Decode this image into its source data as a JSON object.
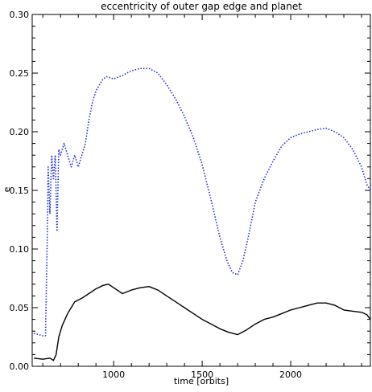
{
  "chart_data": {
    "type": "line",
    "title": "eccentricity of outer gap edge and planet",
    "xlabel": "time [orbits]",
    "ylabel": "e",
    "xlim": [
      540,
      2450
    ],
    "ylim": [
      0.0,
      0.3
    ],
    "xticks": [
      1000,
      1500,
      2000
    ],
    "yticks": [
      0.0,
      0.05,
      0.1,
      0.15,
      0.2,
      0.25,
      0.3
    ],
    "ytick_labels": [
      "0.00",
      "0.05",
      "0.10",
      "0.15",
      "0.20",
      "0.25",
      "0.30"
    ],
    "grid": false,
    "legend": "none",
    "series": [
      {
        "style": "dotted",
        "color": "#1f2fd6",
        "points": [
          [
            550,
            0.028
          ],
          [
            600,
            0.026
          ],
          [
            615,
            0.026
          ],
          [
            625,
            0.11
          ],
          [
            630,
            0.17
          ],
          [
            640,
            0.13
          ],
          [
            650,
            0.18
          ],
          [
            660,
            0.16
          ],
          [
            670,
            0.18
          ],
          [
            680,
            0.115
          ],
          [
            690,
            0.185
          ],
          [
            700,
            0.18
          ],
          [
            720,
            0.19
          ],
          [
            740,
            0.18
          ],
          [
            760,
            0.17
          ],
          [
            780,
            0.18
          ],
          [
            800,
            0.17
          ],
          [
            820,
            0.18
          ],
          [
            840,
            0.19
          ],
          [
            860,
            0.21
          ],
          [
            880,
            0.225
          ],
          [
            900,
            0.235
          ],
          [
            920,
            0.24
          ],
          [
            940,
            0.245
          ],
          [
            960,
            0.247
          ],
          [
            980,
            0.246
          ],
          [
            1000,
            0.245
          ],
          [
            1050,
            0.248
          ],
          [
            1100,
            0.252
          ],
          [
            1150,
            0.254
          ],
          [
            1200,
            0.254
          ],
          [
            1250,
            0.25
          ],
          [
            1300,
            0.24
          ],
          [
            1350,
            0.228
          ],
          [
            1400,
            0.213
          ],
          [
            1450,
            0.195
          ],
          [
            1500,
            0.172
          ],
          [
            1550,
            0.142
          ],
          [
            1600,
            0.11
          ],
          [
            1640,
            0.09
          ],
          [
            1670,
            0.08
          ],
          [
            1700,
            0.078
          ],
          [
            1730,
            0.09
          ],
          [
            1760,
            0.11
          ],
          [
            1800,
            0.14
          ],
          [
            1850,
            0.16
          ],
          [
            1900,
            0.175
          ],
          [
            1950,
            0.188
          ],
          [
            2000,
            0.195
          ],
          [
            2050,
            0.198
          ],
          [
            2100,
            0.2
          ],
          [
            2150,
            0.202
          ],
          [
            2200,
            0.203
          ],
          [
            2250,
            0.2
          ],
          [
            2300,
            0.195
          ],
          [
            2350,
            0.185
          ],
          [
            2400,
            0.17
          ],
          [
            2430,
            0.155
          ],
          [
            2450,
            0.15
          ]
        ]
      },
      {
        "style": "solid",
        "color": "#000000",
        "points": [
          [
            550,
            0.007
          ],
          [
            600,
            0.006
          ],
          [
            640,
            0.007
          ],
          [
            660,
            0.005
          ],
          [
            675,
            0.01
          ],
          [
            690,
            0.025
          ],
          [
            710,
            0.035
          ],
          [
            740,
            0.045
          ],
          [
            780,
            0.055
          ],
          [
            820,
            0.058
          ],
          [
            860,
            0.062
          ],
          [
            900,
            0.066
          ],
          [
            940,
            0.069
          ],
          [
            970,
            0.07
          ],
          [
            1000,
            0.067
          ],
          [
            1050,
            0.062
          ],
          [
            1100,
            0.065
          ],
          [
            1150,
            0.067
          ],
          [
            1200,
            0.068
          ],
          [
            1250,
            0.065
          ],
          [
            1300,
            0.06
          ],
          [
            1350,
            0.055
          ],
          [
            1400,
            0.05
          ],
          [
            1450,
            0.045
          ],
          [
            1500,
            0.04
          ],
          [
            1550,
            0.036
          ],
          [
            1600,
            0.032
          ],
          [
            1650,
            0.029
          ],
          [
            1700,
            0.027
          ],
          [
            1750,
            0.031
          ],
          [
            1800,
            0.036
          ],
          [
            1850,
            0.04
          ],
          [
            1900,
            0.042
          ],
          [
            1950,
            0.045
          ],
          [
            2000,
            0.048
          ],
          [
            2050,
            0.05
          ],
          [
            2100,
            0.052
          ],
          [
            2150,
            0.054
          ],
          [
            2200,
            0.054
          ],
          [
            2250,
            0.052
          ],
          [
            2300,
            0.048
          ],
          [
            2350,
            0.047
          ],
          [
            2400,
            0.046
          ],
          [
            2430,
            0.044
          ],
          [
            2450,
            0.04
          ]
        ]
      }
    ]
  }
}
